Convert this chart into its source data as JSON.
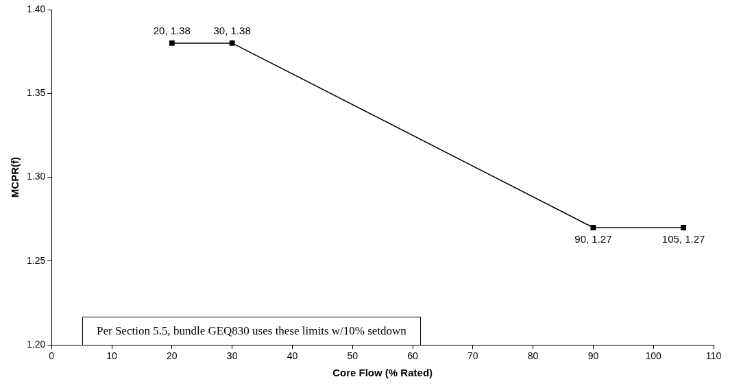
{
  "chart_data": {
    "type": "line",
    "xlabel": "Core Flow (% Rated)",
    "ylabel": "MCPR(f)",
    "x": [
      20,
      30,
      90,
      105
    ],
    "series": [
      {
        "color": "#000000",
        "values": [
          1.38,
          1.38,
          1.27,
          1.27
        ],
        "value_labels": [
          "20, 1.38",
          "30, 1.38",
          "90, 1.27",
          "105, 1.27"
        ]
      }
    ],
    "xlim": [
      0,
      110
    ],
    "xticks": [
      0,
      10,
      20,
      30,
      40,
      50,
      60,
      70,
      80,
      90,
      100,
      110
    ],
    "ylim": [
      1.2,
      1.4
    ],
    "yticks": [
      {
        "value": 1.2,
        "label": "1.20"
      },
      {
        "value": 1.25,
        "label": "1.25"
      },
      {
        "value": 1.3,
        "label": "1.30"
      },
      {
        "value": 1.35,
        "label": "1.35"
      },
      {
        "value": 1.4,
        "label": "1.40"
      }
    ],
    "annotations": [
      "Per Section 5.5, bundle GEQ830 uses these limits w/10% setdown"
    ],
    "grid": false,
    "legend": false,
    "marker": "square",
    "line_style": "solid"
  }
}
